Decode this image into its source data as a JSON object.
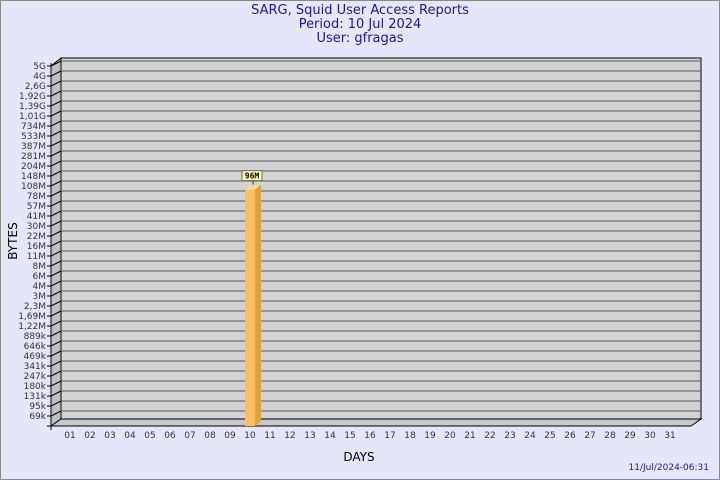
{
  "title_lines": [
    "SARG, Squid User Access Reports",
    "Period: 10 Jul 2024",
    "User: gfragas"
  ],
  "timestamp": "11/Jul/2024-06:31",
  "chart_data": {
    "type": "bar",
    "xlabel": "DAYS",
    "ylabel": "BYTES",
    "y_scale": "log",
    "y_tick_labels": [
      "5G",
      "4G",
      "2,6G",
      "1,92G",
      "1,39G",
      "1,01G",
      "734M",
      "533M",
      "387M",
      "281M",
      "204M",
      "148M",
      "108M",
      "78M",
      "57M",
      "41M",
      "30M",
      "22M",
      "16M",
      "11M",
      "8M",
      "6M",
      "4M",
      "3M",
      "2,3M",
      "1,69M",
      "1,22M",
      "889k",
      "646k",
      "469k",
      "341k",
      "247k",
      "180k",
      "131k",
      "95k",
      "69k"
    ],
    "categories": [
      "01",
      "02",
      "03",
      "04",
      "05",
      "06",
      "07",
      "08",
      "09",
      "10",
      "11",
      "12",
      "13",
      "14",
      "15",
      "16",
      "17",
      "18",
      "19",
      "20",
      "21",
      "22",
      "23",
      "24",
      "25",
      "26",
      "27",
      "28",
      "29",
      "30",
      "31"
    ],
    "bars": [
      {
        "category": "10",
        "value_label": "96M",
        "value_bytes": 96000000
      }
    ],
    "grid": true,
    "colors": {
      "bar": "#f8c060",
      "bar_side": "#e0a040",
      "wall": "#d3d3d3",
      "background": "#e6e6fa",
      "title": "#1a1a8c"
    }
  }
}
